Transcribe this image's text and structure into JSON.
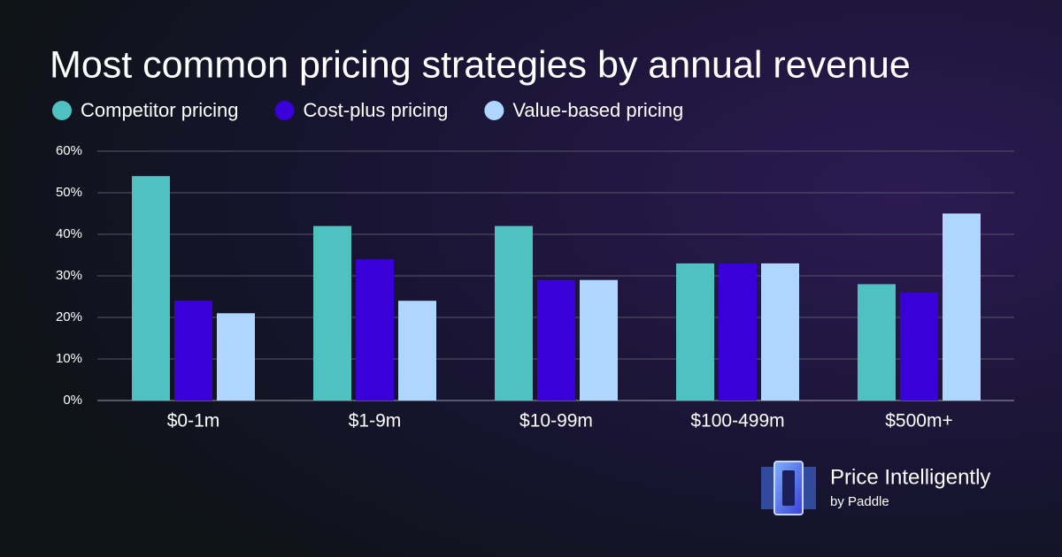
{
  "chart_data": {
    "type": "bar",
    "title": "Most common pricing strategies by annual revenue",
    "categories": [
      "$0-1m",
      "$1-9m",
      "$10-99m",
      "$100-499m",
      "$500m+"
    ],
    "series": [
      {
        "name": "Competitor pricing",
        "color": "#4fc1c1",
        "values": [
          54,
          42,
          42,
          33,
          28
        ]
      },
      {
        "name": "Cost-plus pricing",
        "color": "#3a00d9",
        "values": [
          24,
          34,
          29,
          33,
          26
        ]
      },
      {
        "name": "Value-based pricing",
        "color": "#aed6ff",
        "values": [
          21,
          24,
          29,
          33,
          45
        ]
      }
    ],
    "ylim": [
      0,
      60
    ],
    "yticks": [
      {
        "value": 0,
        "label": "0%"
      },
      {
        "value": 10,
        "label": "10%"
      },
      {
        "value": 20,
        "label": "20%"
      },
      {
        "value": 30,
        "label": "30%"
      },
      {
        "value": 40,
        "label": "40%"
      },
      {
        "value": 50,
        "label": "50%"
      },
      {
        "value": 60,
        "label": "60%"
      }
    ],
    "grid": true,
    "legend": "top-left"
  },
  "branding": {
    "name": "Price Intelligently",
    "byline": "by Paddle"
  }
}
